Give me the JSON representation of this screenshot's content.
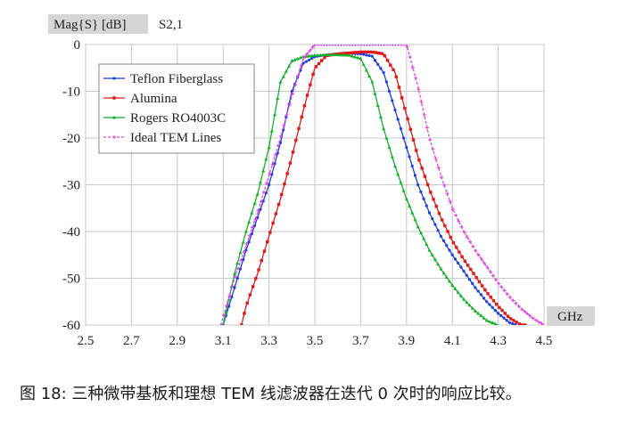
{
  "chart_data": {
    "type": "line",
    "ylabel": "Mag{S} [dB]",
    "trace_label": "S2,1",
    "xlabel": "GHz",
    "xlim": [
      2.5,
      4.5
    ],
    "ylim": [
      -60,
      0
    ],
    "xticks": [
      "2.5",
      "2.7",
      "2.9",
      "3.1",
      "3.3",
      "3.5",
      "3.7",
      "3.9",
      "4.1",
      "4.3",
      "4.5"
    ],
    "yticks": [
      "0",
      "-10",
      "-20",
      "-30",
      "-40",
      "-50",
      "-60"
    ],
    "grid": true,
    "legend_position": "top-left",
    "series": [
      {
        "name": "Teflon Fiberglass",
        "color": "#1f3fd6",
        "marker": "dot",
        "x": [
          3.1,
          3.15,
          3.2,
          3.25,
          3.3,
          3.35,
          3.4,
          3.45,
          3.5,
          3.55,
          3.6,
          3.65,
          3.7,
          3.75,
          3.8,
          3.85,
          3.9,
          3.95,
          4.0,
          4.05,
          4.1,
          4.15,
          4.2,
          4.25,
          4.3,
          4.35,
          4.38
        ],
        "y": [
          -60,
          -52,
          -44,
          -37,
          -30,
          -21,
          -10,
          -4,
          -2.6,
          -2.2,
          -2.0,
          -1.9,
          -2.0,
          -2.5,
          -6,
          -14,
          -22,
          -30,
          -36,
          -41,
          -45,
          -48.5,
          -52,
          -55,
          -57.5,
          -59.5,
          -60
        ]
      },
      {
        "name": "Alumina",
        "color": "#e01818",
        "marker": "square",
        "x": [
          3.18,
          3.2,
          3.25,
          3.3,
          3.35,
          3.4,
          3.45,
          3.5,
          3.55,
          3.6,
          3.65,
          3.7,
          3.75,
          3.8,
          3.85,
          3.9,
          3.95,
          4.0,
          4.05,
          4.1,
          4.15,
          4.2,
          4.25,
          4.3,
          4.35,
          4.4,
          4.42
        ],
        "y": [
          -60,
          -56,
          -49,
          -41,
          -33,
          -24,
          -14,
          -5,
          -2.4,
          -2.0,
          -1.8,
          -1.6,
          -1.6,
          -2.0,
          -6,
          -15,
          -24,
          -31,
          -37,
          -42,
          -46,
          -49.5,
          -53,
          -56,
          -58.5,
          -60,
          -60
        ]
      },
      {
        "name": "Rogers RO4003C",
        "color": "#14b02a",
        "marker": "triangle",
        "x": [
          3.1,
          3.15,
          3.2,
          3.25,
          3.3,
          3.35,
          3.4,
          3.45,
          3.5,
          3.55,
          3.6,
          3.65,
          3.7,
          3.75,
          3.8,
          3.85,
          3.9,
          3.95,
          4.0,
          4.05,
          4.1,
          4.15,
          4.2,
          4.25,
          4.3
        ],
        "y": [
          -60,
          -49,
          -40,
          -32,
          -22,
          -8,
          -3.5,
          -2.6,
          -2.3,
          -2.2,
          -2.2,
          -2.3,
          -3.0,
          -8,
          -18,
          -26,
          -33,
          -39,
          -44,
          -48,
          -51.5,
          -54.5,
          -57,
          -59,
          -60
        ]
      },
      {
        "name": "Ideal TEM Lines",
        "color": "#e040e0",
        "marker": "plus",
        "x": [
          3.09,
          3.15,
          3.2,
          3.25,
          3.3,
          3.35,
          3.4,
          3.45,
          3.5,
          3.55,
          3.6,
          3.65,
          3.7,
          3.75,
          3.8,
          3.85,
          3.9,
          3.95,
          4.0,
          4.05,
          4.1,
          4.15,
          4.2,
          4.25,
          4.3,
          4.35,
          4.4,
          4.45,
          4.5
        ],
        "y": [
          -60,
          -50,
          -43,
          -36,
          -28,
          -20,
          -11,
          -3,
          0,
          0,
          0,
          0,
          0,
          0,
          0,
          0,
          0,
          -9,
          -20,
          -28,
          -35,
          -40,
          -44,
          -47.5,
          -51,
          -54,
          -56.5,
          -58.5,
          -60
        ]
      }
    ]
  },
  "caption": "图 18: 三种微带基板和理想 TEM 线滤波器在迭代 0 次时的响应比较。"
}
